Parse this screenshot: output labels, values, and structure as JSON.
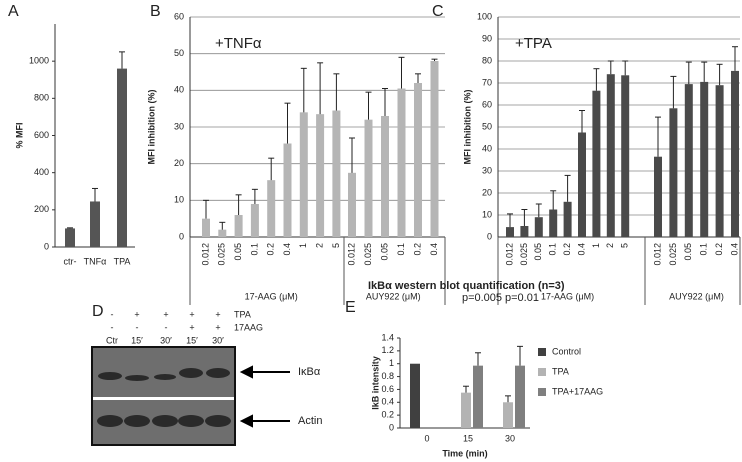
{
  "chart_data": [
    {
      "type": "bar",
      "panel_label": "A",
      "ylabel": "% MFI",
      "categories": [
        "ctr-",
        "TNFα",
        "TPA"
      ],
      "values": [
        100,
        245,
        960
      ],
      "errors": [
        3,
        70,
        90
      ],
      "color": "#555555",
      "ylim": [
        0,
        1200
      ],
      "yticks": [
        0,
        200,
        400,
        600,
        800,
        1000
      ],
      "grid": false
    },
    {
      "type": "bar",
      "panel_label": "B",
      "ylabel": "MFI inhibition (%)",
      "annotation": "+TNFα",
      "groups": [
        {
          "label": "17-AAG (μM)",
          "categories": [
            "0.012",
            "0.025",
            "0.05",
            "0.1",
            "0.2",
            "0.4",
            "1",
            "2",
            "5"
          ],
          "values": [
            5,
            2,
            6,
            9,
            15.5,
            25.5,
            34,
            33.5,
            34.5
          ],
          "errors": [
            5,
            2,
            5.5,
            4,
            6,
            11,
            12,
            14,
            10
          ]
        },
        {
          "label": "AUY922 (μM)",
          "categories": [
            "0.012",
            "0.025",
            "0.05",
            "0.1",
            "0.2",
            "0.4"
          ],
          "values": [
            17.5,
            32,
            33,
            40.5,
            42,
            48
          ],
          "errors": [
            9.5,
            7.5,
            7.5,
            8.5,
            2.5,
            0.5
          ]
        }
      ],
      "color": "#b5b5b5",
      "ylim": [
        0,
        60
      ],
      "yticks": [
        0,
        10,
        20,
        30,
        40,
        50,
        60
      ],
      "grid": true
    },
    {
      "type": "bar",
      "panel_label": "C",
      "ylabel": "MFI inhibition (%)",
      "annotation": "+TPA",
      "groups": [
        {
          "label": "17-AAG (μM)",
          "categories": [
            "0.012",
            "0.025",
            "0.05",
            "0.1",
            "0.2",
            "0.4",
            "1",
            "2",
            "5"
          ],
          "values": [
            4.5,
            5,
            9,
            12.5,
            16,
            47.5,
            66.5,
            74,
            73.5
          ],
          "errors": [
            6,
            7.5,
            6,
            8.5,
            12,
            10,
            10,
            6,
            6.5
          ]
        },
        {
          "label": "AUY922 (μM)",
          "categories": [
            "0.012",
            "0.025",
            "0.05",
            "0.1",
            "0.2",
            "0.4"
          ],
          "values": [
            36.5,
            58.5,
            69.5,
            70.5,
            69,
            75.5
          ],
          "errors": [
            18,
            14.5,
            10,
            9,
            9.5,
            11
          ]
        }
      ],
      "color": "#4a4a4a",
      "ylim": [
        0,
        100
      ],
      "yticks": [
        0,
        10,
        20,
        30,
        40,
        50,
        60,
        70,
        80,
        90,
        100
      ],
      "grid": true
    },
    {
      "type": "grouped_bar",
      "panel_label": "E",
      "title": "IkBα western blot quantification (n=3)",
      "xlabel": "Time (min)",
      "ylabel": "IkB intensity",
      "categories": [
        "0",
        "15",
        "30"
      ],
      "series": [
        {
          "name": "Control",
          "color": "#404040",
          "values": [
            1,
            null,
            null
          ],
          "errors": [
            null,
            null,
            null
          ]
        },
        {
          "name": "TPA",
          "color": "#b3b3b3",
          "values": [
            null,
            0.55,
            0.4
          ],
          "errors": [
            null,
            0.1,
            0.1
          ]
        },
        {
          "name": "TPA+17AAG",
          "color": "#7f7f7f",
          "values": [
            null,
            0.97,
            0.97
          ],
          "errors": [
            null,
            0.2,
            0.3
          ]
        }
      ],
      "annotations": [
        "p=0.005",
        "p=0.01"
      ],
      "ylim": [
        0,
        1.4
      ],
      "yticks": [
        0,
        0.2,
        0.4,
        0.6,
        0.8,
        1,
        1.2,
        1.4
      ],
      "grid": false,
      "legend": "right"
    }
  ],
  "blot_panel": {
    "panel_label": "D",
    "treatments": [
      "TPA",
      "17AAG"
    ],
    "tpa_row": [
      "-",
      "+",
      "+",
      "+",
      "+"
    ],
    "aag_row": [
      "-",
      "-",
      "-",
      "+",
      "+"
    ],
    "lanes": [
      "Ctr",
      "15′",
      "30′",
      "15′",
      "30′"
    ],
    "bands": [
      "IκBα",
      "Actin"
    ]
  }
}
